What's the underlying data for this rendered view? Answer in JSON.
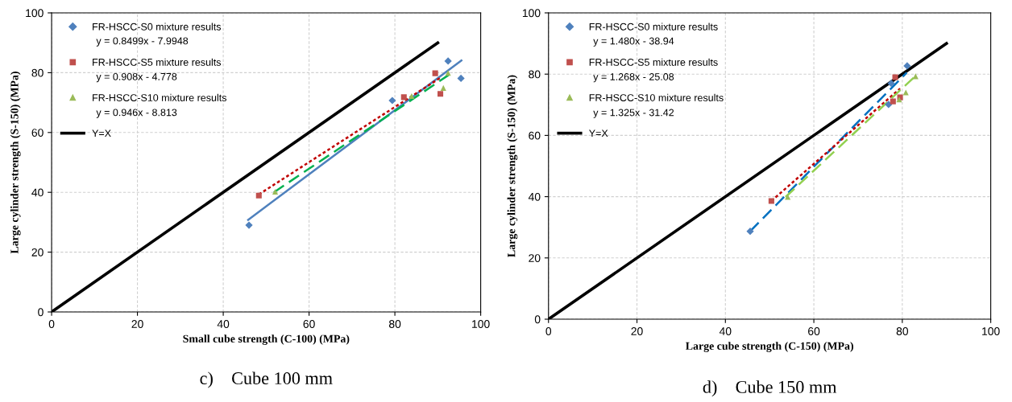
{
  "chart_data": [
    {
      "type": "scatter",
      "subtitle": "c)    Cube 100 mm",
      "xlabel": "Small cube strength (C-100) (MPa)",
      "ylabel": "Large cylinder strength (S-150) (MPa)",
      "xlim": [
        0,
        100
      ],
      "ylim": [
        0,
        100
      ],
      "xticks": [
        0,
        20,
        40,
        60,
        80,
        100
      ],
      "yticks": [
        0,
        20,
        40,
        60,
        80,
        100
      ],
      "grid": true,
      "legend": "top left",
      "annotations": [
        "y = 0.8499x - 7.9948",
        "y = 0.908x - 4.778",
        "y = 0.946x - 8.813"
      ],
      "series": [
        {
          "name": "FR-HSCC-S0 mixture results",
          "type": "scatter",
          "marker": "diamond",
          "color": "#4f81bd",
          "x": [
            46.0,
            79.4,
            92.4,
            95.4
          ],
          "values": [
            29.0,
            70.7,
            83.9,
            78.1
          ]
        },
        {
          "name": "FR-HSCC-S5 mixture results",
          "type": "scatter",
          "marker": "square",
          "color": "#c0504d",
          "x": [
            48.3,
            82.1,
            89.4,
            90.6
          ],
          "values": [
            38.9,
            71.8,
            79.8,
            72.9
          ]
        },
        {
          "name": "FR-HSCC-S10 mixture results",
          "type": "scatter",
          "marker": "triangle",
          "color": "#9bbb59",
          "x": [
            52.1,
            83.9,
            91.3,
            92.4
          ],
          "values": [
            40.2,
            72.2,
            74.9,
            79.9
          ]
        },
        {
          "name": "Y=X",
          "type": "line",
          "line_style": "solid",
          "color": "#000000",
          "x": [
            0,
            90
          ],
          "values": [
            0,
            90
          ]
        },
        {
          "type": "line",
          "line_style": "solid",
          "color": "#4f81bd",
          "x": [
            45.8,
            95.5
          ],
          "values": [
            30.8,
            84.1
          ]
        },
        {
          "type": "line",
          "line_style": "dotted",
          "color": "#c00000",
          "x": [
            48.3,
            90.6
          ],
          "values": [
            39.3,
            78.3
          ]
        },
        {
          "type": "line",
          "line_style": "dashed",
          "color": "#00b050",
          "x": [
            51.8,
            92.5
          ],
          "values": [
            40.0,
            79.2
          ]
        }
      ]
    },
    {
      "type": "scatter",
      "subtitle": "d)    Cube 150 mm",
      "xlabel": "Large cube strength (C-150) (MPa)",
      "ylabel": "Large cylinder strength (S-150) (MPa)",
      "xlim": [
        0,
        100
      ],
      "ylim": [
        0,
        100
      ],
      "xticks": [
        0,
        20,
        40,
        60,
        80,
        100
      ],
      "yticks": [
        0,
        20,
        40,
        60,
        80,
        100
      ],
      "grid": true,
      "legend": "top left",
      "annotations": [
        "y = 1.480x - 38.94",
        "y = 1.268x - 25.08",
        "y = 1.325x - 31.42"
      ],
      "series": [
        {
          "name": "FR-HSCC-S0 mixture results",
          "type": "scatter",
          "marker": "diamond",
          "color": "#4f81bd",
          "x": [
            45.6,
            76.9,
            77.5,
            81.1
          ],
          "values": [
            28.7,
            70.1,
            77.0,
            82.7
          ]
        },
        {
          "name": "FR-HSCC-S5 mixture results",
          "type": "scatter",
          "marker": "square",
          "color": "#c0504d",
          "x": [
            50.4,
            77.9,
            78.4,
            79.5
          ],
          "values": [
            38.6,
            71.1,
            79.0,
            72.4
          ]
        },
        {
          "name": "FR-HSCC-S10 mixture results",
          "type": "scatter",
          "marker": "triangle",
          "color": "#9bbb59",
          "x": [
            54.1,
            79.3,
            80.8,
            83.0
          ],
          "values": [
            39.9,
            71.7,
            74.0,
            79.3
          ]
        },
        {
          "name": "Y=X",
          "type": "line",
          "line_style": "solid",
          "color": "#000000",
          "x": [
            0,
            90
          ],
          "values": [
            0,
            90
          ]
        },
        {
          "type": "line",
          "line_style": "dashed",
          "color": "#0070c0",
          "x": [
            45.6,
            81.0
          ],
          "values": [
            28.7,
            80.5
          ]
        },
        {
          "type": "line",
          "line_style": "dotted",
          "color": "#c00000",
          "x": [
            50.4,
            79.5
          ],
          "values": [
            38.6,
            75.3
          ]
        },
        {
          "type": "line",
          "line_style": "dashed",
          "color": "#92d050",
          "x": [
            53.6,
            83.2
          ],
          "values": [
            39.9,
            79.7
          ]
        }
      ]
    }
  ]
}
